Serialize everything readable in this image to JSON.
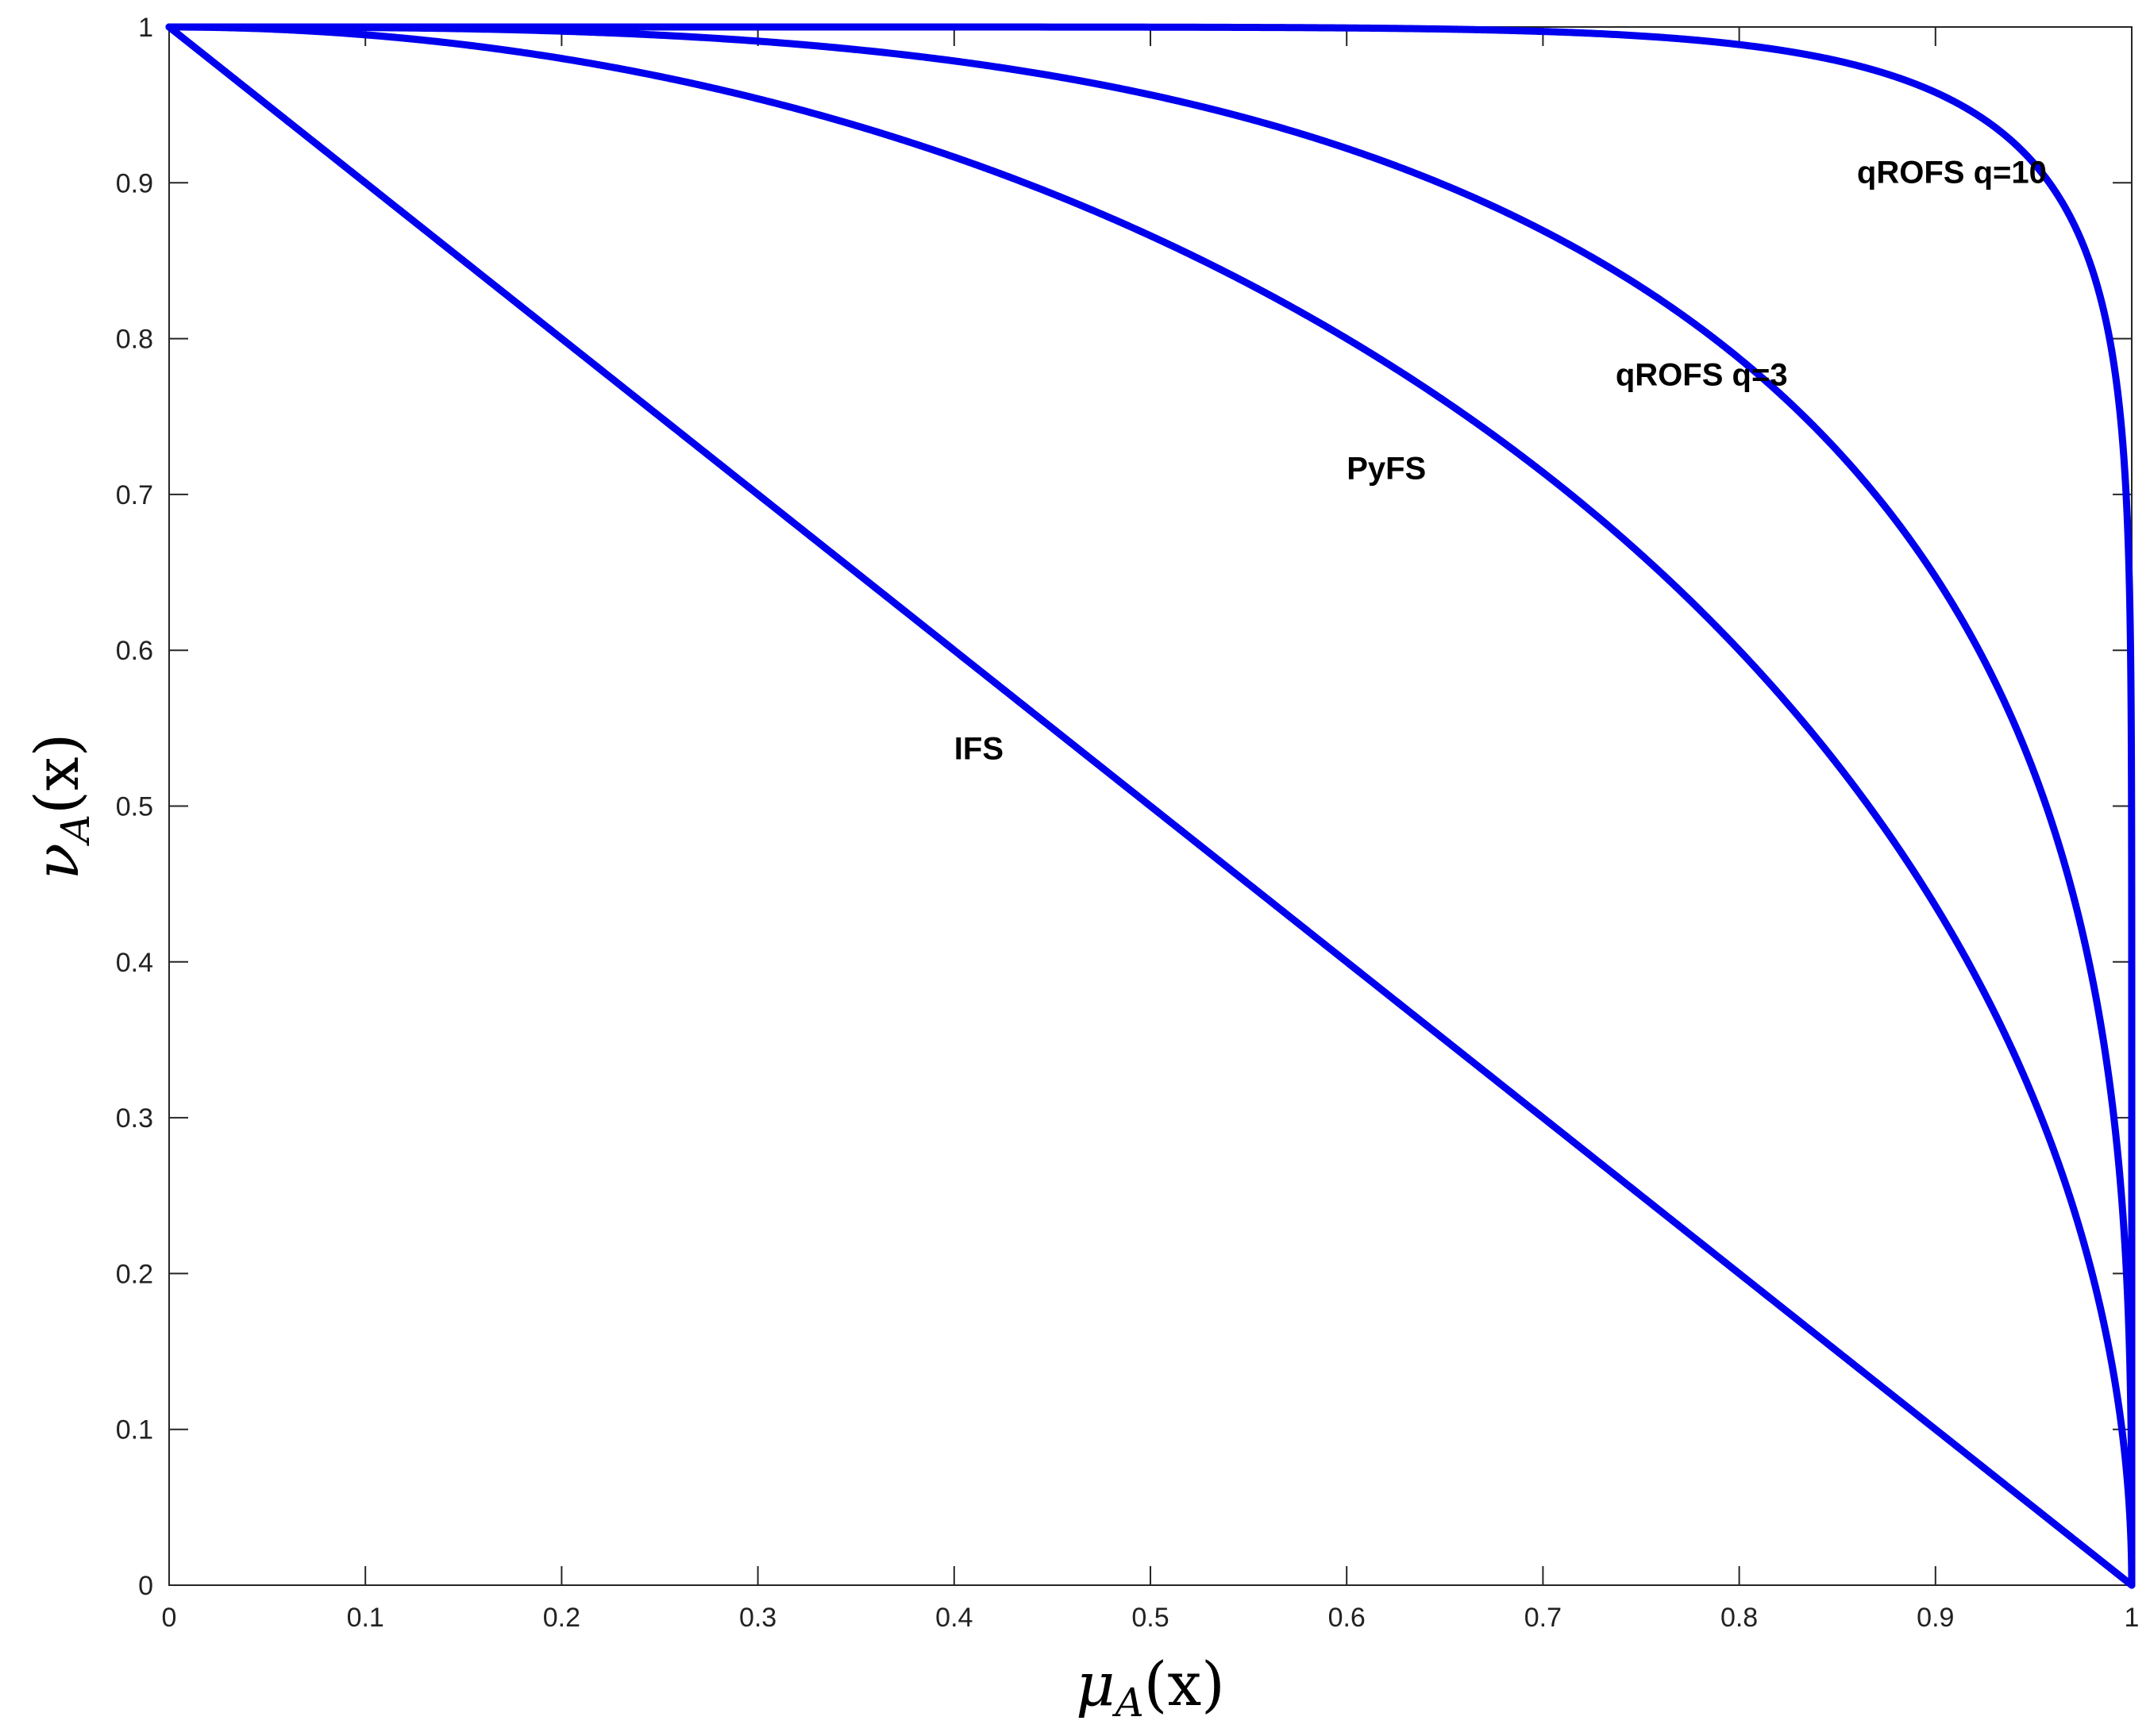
{
  "chart_data": {
    "type": "line",
    "title": "",
    "xlabel": {
      "main": "μ",
      "sub": "A",
      "rest": "(x)"
    },
    "ylabel": {
      "main": "ν",
      "sub": "A",
      "rest": "(x)"
    },
    "xlim": [
      0,
      1
    ],
    "ylim": [
      0,
      1
    ],
    "grid": false,
    "legend": "none",
    "line_color": "#0000ee",
    "x_ticks": [
      "0",
      "0.1",
      "0.2",
      "0.3",
      "0.4",
      "0.5",
      "0.6",
      "0.7",
      "0.8",
      "0.9",
      "1"
    ],
    "y_ticks": [
      "0",
      "0.1",
      "0.2",
      "0.3",
      "0.4",
      "0.5",
      "0.6",
      "0.7",
      "0.8",
      "0.9",
      "1"
    ],
    "series": [
      {
        "q": 1,
        "x": [
          0,
          0.1,
          0.2,
          0.3,
          0.4,
          0.5,
          0.6,
          0.7,
          0.8,
          0.9,
          1
        ],
        "y": [
          1,
          0.9,
          0.8,
          0.7,
          0.6,
          0.5,
          0.4,
          0.3,
          0.2,
          0.1,
          0
        ]
      },
      {
        "q": 2,
        "x": [
          0,
          0.1,
          0.2,
          0.3,
          0.4,
          0.5,
          0.6,
          0.7,
          0.8,
          0.9,
          0.95,
          1
        ],
        "y": [
          1,
          0.995,
          0.98,
          0.954,
          0.917,
          0.866,
          0.8,
          0.714,
          0.6,
          0.436,
          0.312,
          0
        ]
      },
      {
        "q": 3,
        "x": [
          0,
          0.1,
          0.2,
          0.3,
          0.4,
          0.5,
          0.6,
          0.7,
          0.8,
          0.9,
          0.95,
          1
        ],
        "y": [
          1,
          1.0,
          0.997,
          0.991,
          0.978,
          0.956,
          0.92,
          0.863,
          0.776,
          0.644,
          0.527,
          0
        ]
      },
      {
        "q": 10,
        "x": [
          0,
          0.5,
          0.6,
          0.7,
          0.8,
          0.85,
          0.9,
          0.95,
          0.98,
          0.99,
          1
        ],
        "y": [
          1,
          1.0,
          1.0,
          1.0,
          0.99,
          0.979,
          0.958,
          0.903,
          0.811,
          0.738,
          0
        ]
      }
    ],
    "annotations": [
      {
        "text": "IFS",
        "x": 0.4,
        "y": 0.53
      },
      {
        "text": "PyFS",
        "x": 0.6,
        "y": 0.71
      },
      {
        "text": "qROFS q=3",
        "x": 0.737,
        "y": 0.77
      },
      {
        "text": "qROFS q=10",
        "x": 0.86,
        "y": 0.9
      }
    ]
  }
}
